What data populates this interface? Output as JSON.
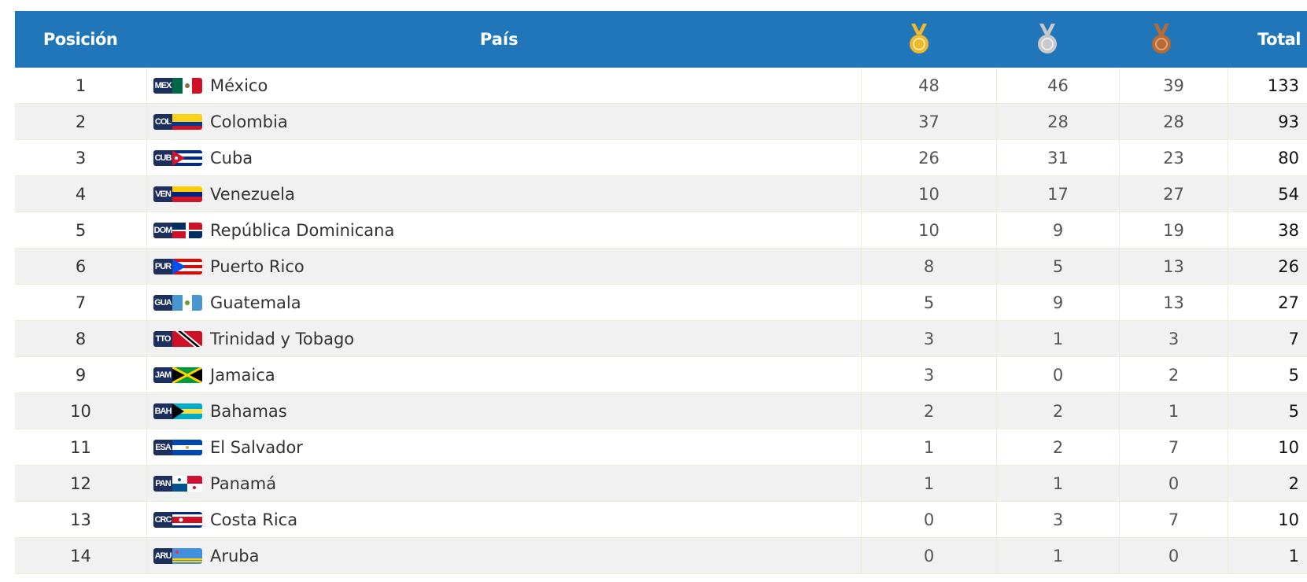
{
  "header": {
    "position_label": "Posición",
    "country_label": "País",
    "total_label": "Total",
    "medal_icons": [
      "gold-medal-icon",
      "silver-medal-icon",
      "bronze-medal-icon"
    ]
  },
  "colors": {
    "header_bg": "#2176b9",
    "gold": "#f0b92a",
    "silver": "#c9c9c9",
    "bronze": "#b86a34"
  },
  "rows": [
    {
      "pos": "1",
      "code": "MEX",
      "country": "México",
      "gold": "48",
      "silver": "46",
      "bronze": "39",
      "total": "133"
    },
    {
      "pos": "2",
      "code": "COL",
      "country": "Colombia",
      "gold": "37",
      "silver": "28",
      "bronze": "28",
      "total": "93"
    },
    {
      "pos": "3",
      "code": "CUB",
      "country": "Cuba",
      "gold": "26",
      "silver": "31",
      "bronze": "23",
      "total": "80"
    },
    {
      "pos": "4",
      "code": "VEN",
      "country": "Venezuela",
      "gold": "10",
      "silver": "17",
      "bronze": "27",
      "total": "54"
    },
    {
      "pos": "5",
      "code": "DOM",
      "country": "República Dominicana",
      "gold": "10",
      "silver": "9",
      "bronze": "19",
      "total": "38"
    },
    {
      "pos": "6",
      "code": "PUR",
      "country": "Puerto Rico",
      "gold": "8",
      "silver": "5",
      "bronze": "13",
      "total": "26"
    },
    {
      "pos": "7",
      "code": "GUA",
      "country": "Guatemala",
      "gold": "5",
      "silver": "9",
      "bronze": "13",
      "total": "27"
    },
    {
      "pos": "8",
      "code": "TTO",
      "country": "Trinidad y Tobago",
      "gold": "3",
      "silver": "1",
      "bronze": "3",
      "total": "7"
    },
    {
      "pos": "9",
      "code": "JAM",
      "country": "Jamaica",
      "gold": "3",
      "silver": "0",
      "bronze": "2",
      "total": "5"
    },
    {
      "pos": "10",
      "code": "BAH",
      "country": "Bahamas",
      "gold": "2",
      "silver": "2",
      "bronze": "1",
      "total": "5"
    },
    {
      "pos": "11",
      "code": "ESA",
      "country": "El Salvador",
      "gold": "1",
      "silver": "2",
      "bronze": "7",
      "total": "10"
    },
    {
      "pos": "12",
      "code": "PAN",
      "country": "Panamá",
      "gold": "1",
      "silver": "1",
      "bronze": "0",
      "total": "2"
    },
    {
      "pos": "13",
      "code": "CRC",
      "country": "Costa Rica",
      "gold": "0",
      "silver": "3",
      "bronze": "7",
      "total": "10"
    },
    {
      "pos": "14",
      "code": "ARU",
      "country": "Aruba",
      "gold": "0",
      "silver": "1",
      "bronze": "0",
      "total": "1"
    }
  ]
}
